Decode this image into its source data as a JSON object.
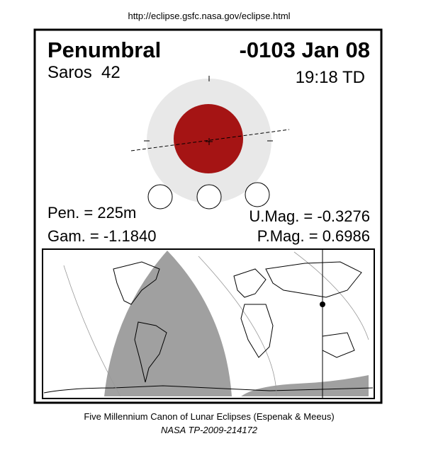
{
  "header": {
    "url": "http://eclipse.gsfc.nasa.gov/eclipse.html"
  },
  "panel": {
    "type_label": "Penumbral",
    "date": "-0103 Jan 08",
    "saros": "Saros  42",
    "time": "19:18 TD",
    "pen": "Pen. = 225m",
    "gamma": "Gam. = -1.1840",
    "umag": "U.Mag. = -0.3276",
    "pmag": "P.Mag. = 0.6986"
  },
  "footer": {
    "line1": "Five Millennium Canon of Lunar Eclipses (Espenak & Meeus)",
    "line2": "NASA TP-2009-214172"
  }
}
